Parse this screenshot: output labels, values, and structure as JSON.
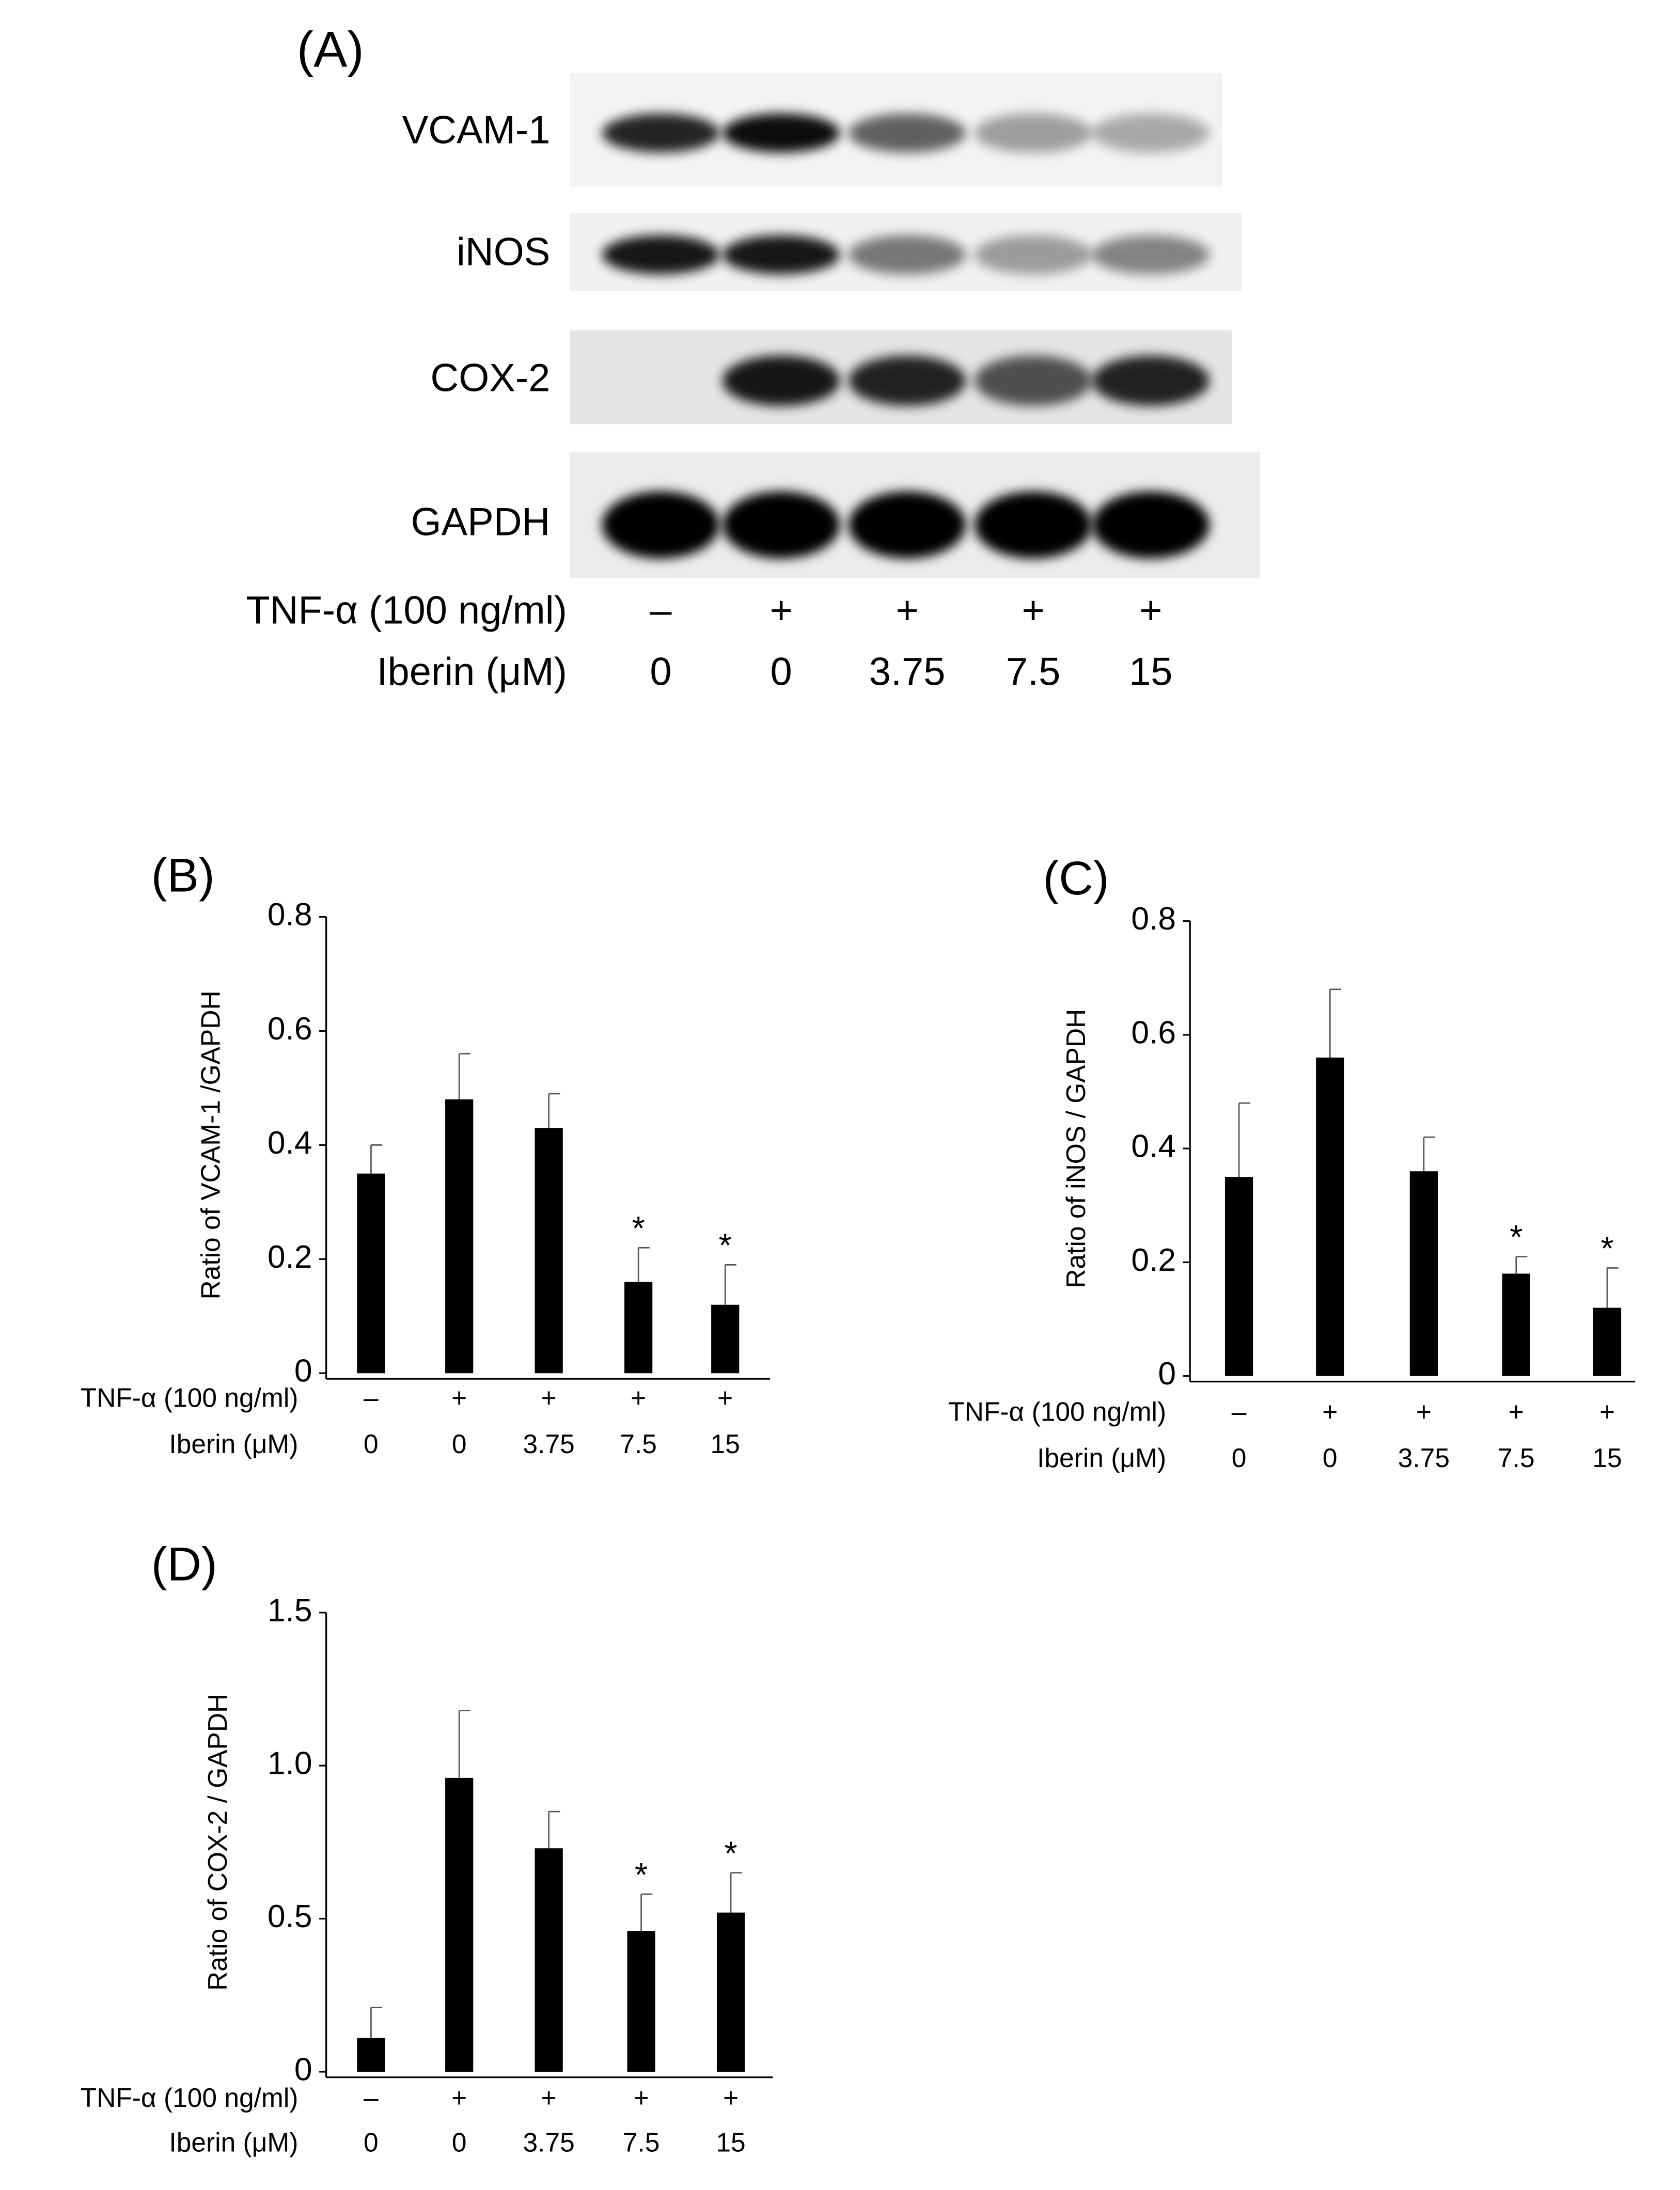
{
  "blot": {
    "panel_label": "(A)",
    "proteins": [
      "VCAM-1",
      "iNOS",
      "COX-2",
      "GAPDH"
    ],
    "rows": [
      {
        "label": "TNF-α (100 ng/ml)",
        "values": [
          "–",
          "+",
          "+",
          "+",
          "+"
        ]
      },
      {
        "label": "Iberin (μM)",
        "values": [
          "0",
          "0",
          "3.75",
          "7.5",
          "15"
        ]
      }
    ]
  },
  "chart_data": [
    {
      "type": "bar",
      "panel_label": "(B)",
      "ylabel": "Ratio of VCAM-1 /GAPDH",
      "color": "#000000",
      "categories": [
        "0",
        "0",
        "3.75",
        "7.5",
        "15"
      ],
      "xlabel": "Iberin (μM)",
      "treatment": {
        "label": "TNF-α (100 ng/ml)",
        "values": [
          "–",
          "+",
          "+",
          "+",
          "+"
        ]
      },
      "values": [
        0.35,
        0.48,
        0.43,
        0.16,
        0.12
      ],
      "errors": [
        0.05,
        0.08,
        0.06,
        0.06,
        0.07
      ],
      "markers": [
        null,
        null,
        null,
        "*",
        "*"
      ],
      "ylim": [
        0,
        0.8
      ],
      "yticks": [
        0,
        0.2,
        0.4,
        0.6,
        0.8
      ]
    },
    {
      "type": "bar",
      "panel_label": "(C)",
      "ylabel": "Ratio of iNOS / GAPDH",
      "color": "#000000",
      "categories": [
        "0",
        "0",
        "3.75",
        "7.5",
        "15"
      ],
      "xlabel": "Iberin (μM)",
      "treatment": {
        "label": "TNF-α (100 ng/ml)",
        "values": [
          "–",
          "+",
          "+",
          "+",
          "+"
        ]
      },
      "values": [
        0.35,
        0.56,
        0.36,
        0.18,
        0.12
      ],
      "errors": [
        0.13,
        0.12,
        0.06,
        0.03,
        0.07
      ],
      "markers": [
        null,
        null,
        null,
        "*",
        "*"
      ],
      "ylim": [
        0,
        0.8
      ],
      "yticks": [
        0,
        0.2,
        0.4,
        0.6,
        0.8
      ]
    },
    {
      "type": "bar",
      "panel_label": "(D)",
      "ylabel": "Ratio of COX-2 / GAPDH",
      "color": "#000000",
      "categories": [
        "0",
        "0",
        "3.75",
        "7.5",
        "15"
      ],
      "xlabel": "Iberin (μM)",
      "treatment": {
        "label": "TNF-α (100 ng/ml)",
        "values": [
          "–",
          "+",
          "+",
          "+",
          "+"
        ]
      },
      "values": [
        0.11,
        0.96,
        0.73,
        0.46,
        0.52
      ],
      "errors": [
        0.1,
        0.22,
        0.12,
        0.12,
        0.13
      ],
      "markers": [
        null,
        null,
        null,
        "*",
        "*"
      ],
      "ylim": [
        0,
        1.5
      ],
      "yticks": [
        0,
        0.5,
        {
          "value": 1,
          "label": "1.0"
        },
        1.5
      ]
    }
  ]
}
